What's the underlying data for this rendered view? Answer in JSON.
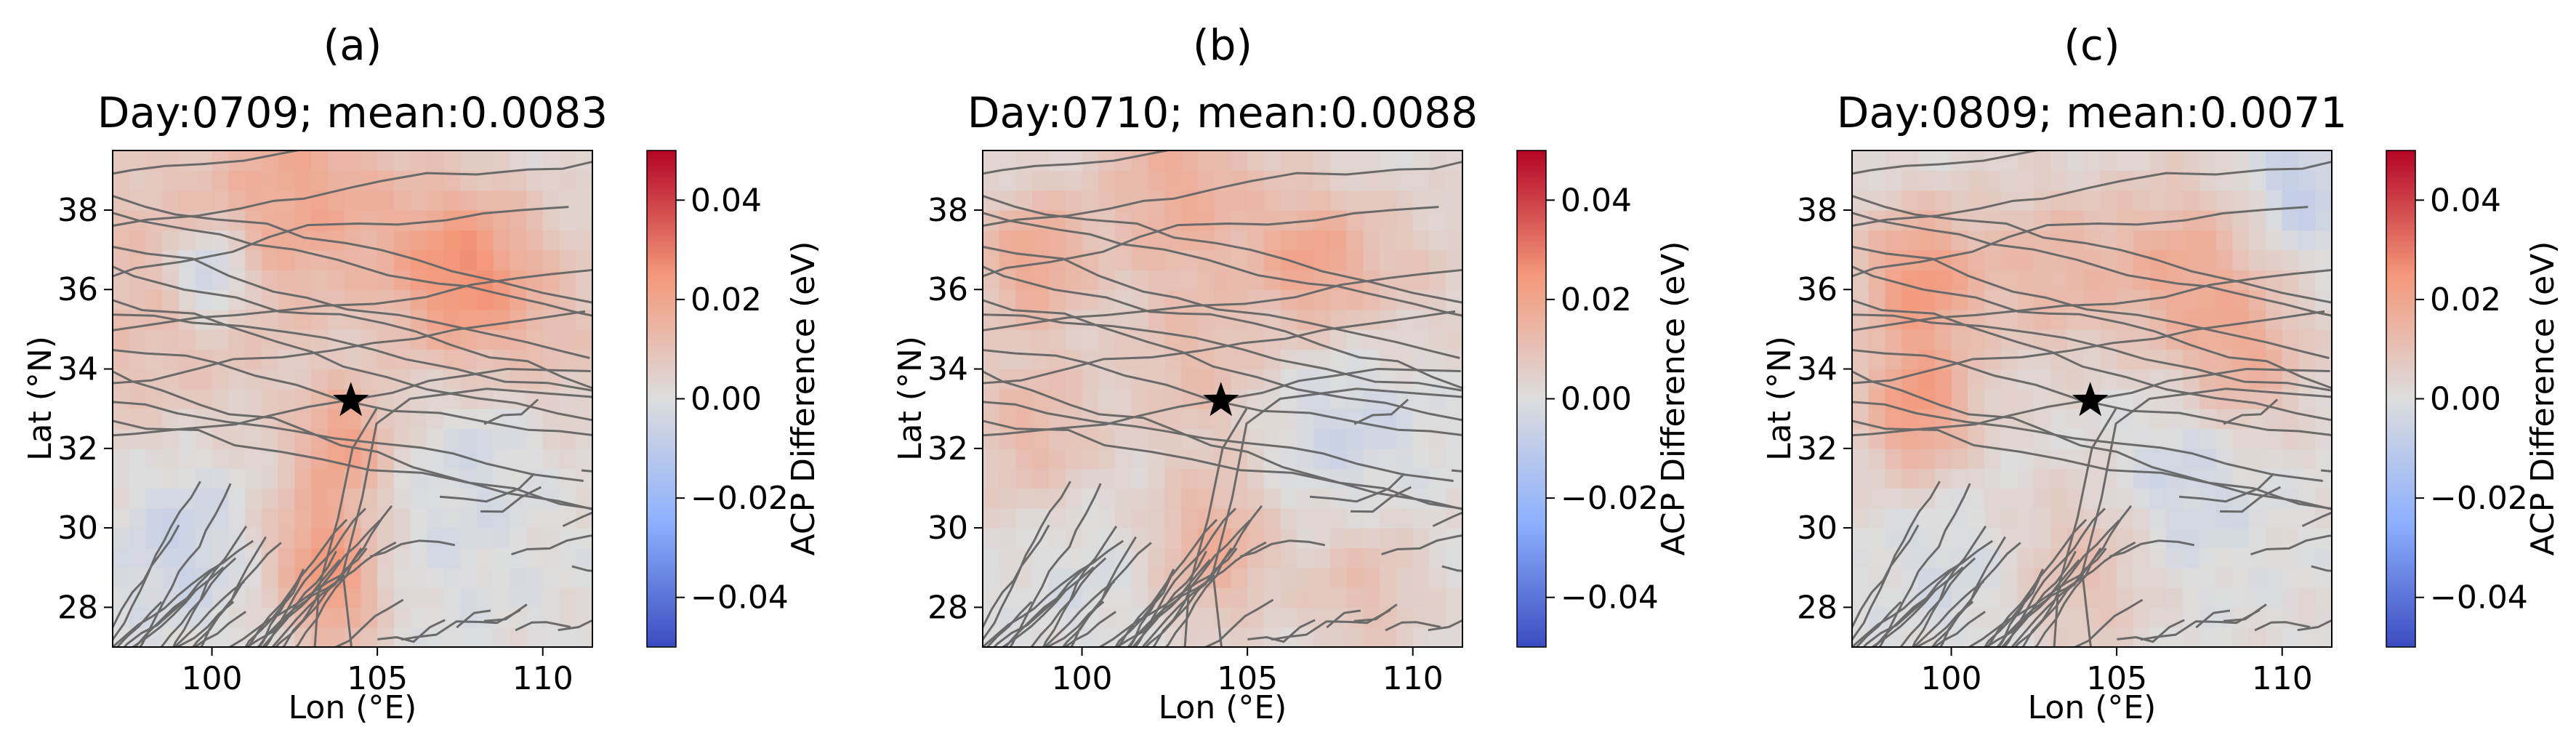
{
  "figure": {
    "colorbar": {
      "label": "ACP Difference (eV)",
      "range": [
        -0.05,
        0.05
      ],
      "ticks": [
        0.04,
        0.02,
        0.0,
        -0.02,
        -0.04
      ],
      "tick_labels": [
        "0.04",
        "0.02",
        "0.00",
        "−0.02",
        "−0.04"
      ],
      "colormap": "coolwarm",
      "colors": [
        "#3b4cc0",
        "#8db0fe",
        "#dddddd",
        "#f4987a",
        "#b40426"
      ]
    },
    "fault_color": "#6a6a6a",
    "epicenter_color": "#000000"
  },
  "chart_data": [
    {
      "type": "heatmap",
      "panel": "(a)",
      "title": "Day:0709; mean:0.0083",
      "xlabel": "Lon (°E)",
      "ylabel": "Lat (°N)",
      "xlim": [
        97,
        111.5
      ],
      "ylim": [
        27,
        39.5
      ],
      "xticks": [
        100,
        105,
        110
      ],
      "yticks": [
        28,
        30,
        32,
        34,
        36,
        38
      ],
      "xtick_labels": [
        "100",
        "105",
        "110"
      ],
      "ytick_labels": [
        "28",
        "30",
        "32",
        "34",
        "36",
        "38"
      ],
      "epicenter": {
        "lon": 104.2,
        "lat": 33.2
      },
      "mean": 0.0083,
      "blobs": [
        {
          "lon": 97.5,
          "lat": 35.5,
          "amp": 0.01,
          "sigma": 4.0
        },
        {
          "lon": 103,
          "lat": 38.5,
          "amp": 0.015,
          "sigma": 2.0
        },
        {
          "lon": 107.5,
          "lat": 36.5,
          "amp": 0.022,
          "sigma": 1.6
        },
        {
          "lon": 110,
          "lat": 35,
          "amp": 0.008,
          "sigma": 2.0
        },
        {
          "lon": 100,
          "lat": 36.4,
          "amp": -0.018,
          "sigma": 0.8
        },
        {
          "lon": 104,
          "lat": 32.2,
          "amp": 0.018,
          "sigma": 1.0
        },
        {
          "lon": 103.3,
          "lat": 29.5,
          "amp": 0.018,
          "sigma": 1.2
        },
        {
          "lon": 103.8,
          "lat": 28,
          "amp": 0.012,
          "sigma": 1.0
        },
        {
          "lon": 99,
          "lat": 30,
          "amp": -0.01,
          "sigma": 1.8
        },
        {
          "lon": 107,
          "lat": 30,
          "amp": -0.003,
          "sigma": 2.0
        },
        {
          "lon": 108.5,
          "lat": 32.5,
          "amp": -0.005,
          "sigma": 1.2
        }
      ]
    },
    {
      "type": "heatmap",
      "panel": "(b)",
      "title": "Day:0710; mean:0.0088",
      "xlabel": "Lon (°E)",
      "ylabel": "Lat (°N)",
      "xlim": [
        97,
        111.5
      ],
      "ylim": [
        27,
        39.5
      ],
      "xticks": [
        100,
        105,
        110
      ],
      "yticks": [
        28,
        30,
        32,
        34,
        36,
        38
      ],
      "xtick_labels": [
        "100",
        "105",
        "110"
      ],
      "ytick_labels": [
        "28",
        "30",
        "32",
        "34",
        "36",
        "38"
      ],
      "epicenter": {
        "lon": 104.2,
        "lat": 33.2
      },
      "mean": 0.0088,
      "blobs": [
        {
          "lon": 98.5,
          "lat": 36.8,
          "amp": 0.018,
          "sigma": 1.2
        },
        {
          "lon": 103,
          "lat": 38.5,
          "amp": 0.016,
          "sigma": 1.8
        },
        {
          "lon": 107,
          "lat": 36.7,
          "amp": 0.018,
          "sigma": 1.3
        },
        {
          "lon": 110,
          "lat": 36.5,
          "amp": 0.006,
          "sigma": 1.5
        },
        {
          "lon": 98.5,
          "lat": 32.5,
          "amp": 0.012,
          "sigma": 1.5
        },
        {
          "lon": 103.5,
          "lat": 34,
          "amp": 0.01,
          "sigma": 1.5
        },
        {
          "lon": 104,
          "lat": 29.5,
          "amp": 0.016,
          "sigma": 1.3
        },
        {
          "lon": 108.5,
          "lat": 28.5,
          "amp": 0.01,
          "sigma": 1.3
        },
        {
          "lon": 108,
          "lat": 32.5,
          "amp": -0.006,
          "sigma": 1.6
        },
        {
          "lon": 100,
          "lat": 29,
          "amp": -0.003,
          "sigma": 1.5
        }
      ]
    },
    {
      "type": "heatmap",
      "panel": "(c)",
      "title": "Day:0809; mean:0.0071",
      "xlabel": "Lon (°E)",
      "ylabel": "Lat (°N)",
      "xlim": [
        97,
        111.5
      ],
      "ylim": [
        27,
        39.5
      ],
      "xticks": [
        100,
        105,
        110
      ],
      "yticks": [
        28,
        30,
        32,
        34,
        36,
        38
      ],
      "xtick_labels": [
        "100",
        "105",
        "110"
      ],
      "ytick_labels": [
        "28",
        "30",
        "32",
        "34",
        "36",
        "38"
      ],
      "epicenter": {
        "lon": 104.2,
        "lat": 33.2
      },
      "mean": 0.0071,
      "blobs": [
        {
          "lon": 99,
          "lat": 36.3,
          "amp": 0.022,
          "sigma": 1.3
        },
        {
          "lon": 99,
          "lat": 33,
          "amp": 0.022,
          "sigma": 1.2
        },
        {
          "lon": 103,
          "lat": 36.5,
          "amp": 0.012,
          "sigma": 1.6
        },
        {
          "lon": 107,
          "lat": 36.5,
          "amp": 0.016,
          "sigma": 1.6
        },
        {
          "lon": 109,
          "lat": 34.3,
          "amp": 0.014,
          "sigma": 1.3
        },
        {
          "lon": 104,
          "lat": 29,
          "amp": 0.01,
          "sigma": 1.5
        },
        {
          "lon": 110.5,
          "lat": 38.5,
          "amp": -0.01,
          "sigma": 1.0
        },
        {
          "lon": 107,
          "lat": 31,
          "amp": -0.006,
          "sigma": 1.6
        },
        {
          "lon": 100,
          "lat": 29,
          "amp": -0.004,
          "sigma": 1.5
        }
      ]
    }
  ]
}
